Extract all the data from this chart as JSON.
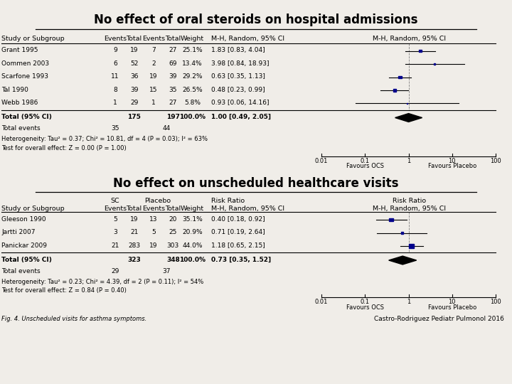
{
  "title1": "No effect of oral steroids on hospital admissions",
  "title2": "No effect on unscheduled healthcare visits",
  "bg_color": "#f0ede8",
  "plot1": {
    "studies": [
      {
        "name": "Grant 1995",
        "e1": 9,
        "n1": 19,
        "e2": 7,
        "n2": 27,
        "weight": "25.1%",
        "ci_text": "1.83 [0.83, 4.04]",
        "or": 1.83,
        "lo": 0.83,
        "hi": 4.04,
        "size": 0.251
      },
      {
        "name": "Oommen 2003",
        "e1": 6,
        "n1": 52,
        "e2": 2,
        "n2": 69,
        "weight": "13.4%",
        "ci_text": "3.98 [0.84, 18.93]",
        "or": 3.98,
        "lo": 0.84,
        "hi": 18.93,
        "size": 0.134
      },
      {
        "name": "Scarfone 1993",
        "e1": 11,
        "n1": 36,
        "e2": 19,
        "n2": 39,
        "weight": "29.2%",
        "ci_text": "0.63 [0.35, 1.13]",
        "or": 0.63,
        "lo": 0.35,
        "hi": 1.13,
        "size": 0.292
      },
      {
        "name": "Tal 1990",
        "e1": 8,
        "n1": 39,
        "e2": 15,
        "n2": 35,
        "weight": "26.5%",
        "ci_text": "0.48 [0.23, 0.99]",
        "or": 0.48,
        "lo": 0.23,
        "hi": 0.99,
        "size": 0.265
      },
      {
        "name": "Webb 1986",
        "e1": 1,
        "n1": 29,
        "e2": 1,
        "n2": 27,
        "weight": "5.8%",
        "ci_text": "0.93 [0.06, 14.16]",
        "or": 0.93,
        "lo": 0.06,
        "hi": 14.16,
        "size": 0.058
      }
    ],
    "total_n1": 175,
    "total_n2": 197,
    "total_weight": "100.0%",
    "total_ci_text": "1.00 [0.49, 2.05]",
    "total_or": 1.0,
    "total_lo": 0.49,
    "total_hi": 2.05,
    "total_e1": 35,
    "total_e2": 44,
    "hetero_text": "Heterogeneity: Tau² = 0.37; Chi² = 10.81, df = 4 (P = 0.03); I² = 63%",
    "test_text": "Test for overall effect: Z = 0.00 (P = 1.00)"
  },
  "plot2": {
    "studies": [
      {
        "name": "Gleeson 1990",
        "e1": 5,
        "n1": 19,
        "e2": 13,
        "n2": 20,
        "weight": "35.1%",
        "ci_text": "0.40 [0.18, 0.92]",
        "or": 0.4,
        "lo": 0.18,
        "hi": 0.92,
        "size": 0.351
      },
      {
        "name": "Jartti 2007",
        "e1": 3,
        "n1": 21,
        "e2": 5,
        "n2": 25,
        "weight": "20.9%",
        "ci_text": "0.71 [0.19, 2.64]",
        "or": 0.71,
        "lo": 0.19,
        "hi": 2.64,
        "size": 0.209
      },
      {
        "name": "Panickar 2009",
        "e1": 21,
        "n1": 283,
        "e2": 19,
        "n2": 303,
        "weight": "44.0%",
        "ci_text": "1.18 [0.65, 2.15]",
        "or": 1.18,
        "lo": 0.65,
        "hi": 2.15,
        "size": 0.44
      }
    ],
    "total_n1": 323,
    "total_n2": 348,
    "total_weight": "100.0%",
    "total_ci_text": "0.73 [0.35, 1.52]",
    "total_or": 0.73,
    "total_lo": 0.35,
    "total_hi": 1.52,
    "total_e1": 29,
    "total_e2": 37,
    "hetero_text": "Heterogeneity: Tau² = 0.23; Chi² = 4.39, df = 2 (P = 0.11); I² = 54%",
    "test_text": "Test for overall effect: Z = 0.84 (P = 0.40)"
  },
  "fig_caption": "Fig. 4. Unscheduled visits for asthma symptoms.",
  "citation": "Castro-Rodriguez Pediatr Pulmonol 2016",
  "dot_color": "#00008b",
  "diamond_color": "#000000",
  "line_color": "#000000"
}
